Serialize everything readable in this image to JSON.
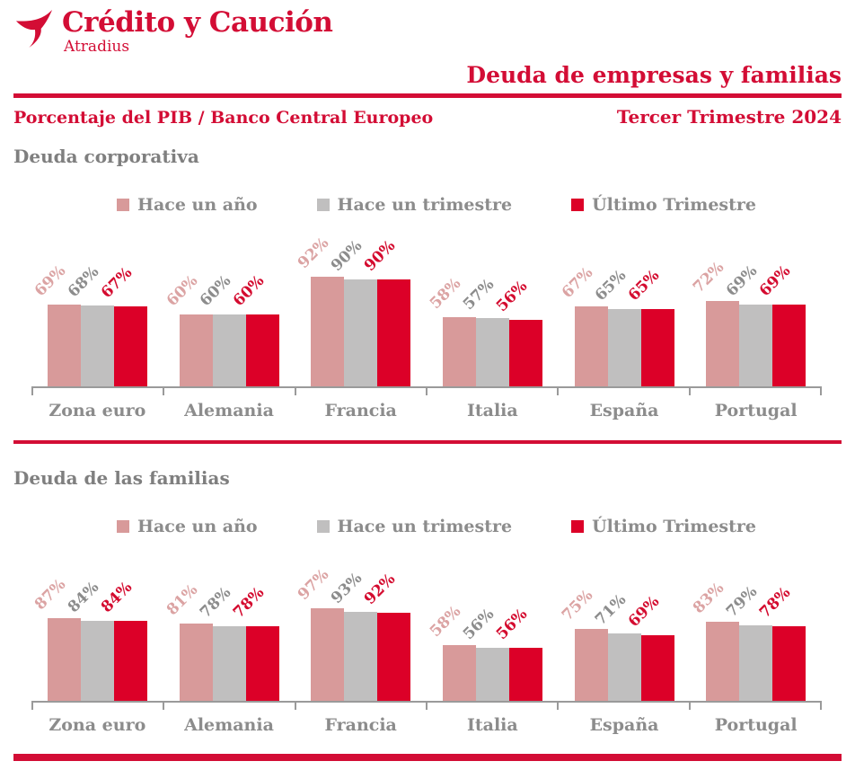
{
  "header": {
    "logo": {
      "title": "Crédito y Caución",
      "subtitle": "Atradius"
    },
    "doc_title": "Deuda de empresas y familias",
    "subtitle_left": "Porcentaje del PIB / Banco Central Europeo",
    "subtitle_right": "Tercer Trimestre 2024"
  },
  "colors": {
    "brand_red": "#d30d35",
    "bar_pink": "#d89a9a",
    "bar_gray": "#c0bfbf",
    "bar_red": "#dc0028",
    "label_pink": "#dba3a3",
    "label_gray": "#8c8c8c",
    "label_red": "#d40b2f",
    "axis_gray": "#9a9a9a",
    "section_title_gray": "#7f7f7f"
  },
  "legend": [
    {
      "label": "Hace un año",
      "swatch_color": "#d89a9a",
      "label_color": "#dba3a3"
    },
    {
      "label": "Hace un trimestre",
      "swatch_color": "#c0bfbf",
      "label_color": "#8c8c8c"
    },
    {
      "label": "Último Trimestre",
      "swatch_color": "#dc0028",
      "label_color": "#d40b2f"
    }
  ],
  "chart_data": [
    {
      "type": "bar",
      "title": "Deuda corporativa",
      "unit": "%",
      "categories": [
        "Zona euro",
        "Alemania",
        "Francia",
        "Italia",
        "España",
        "Portugal"
      ],
      "series": [
        {
          "name": "Hace un año",
          "values": [
            69,
            60,
            92,
            58,
            67,
            72
          ]
        },
        {
          "name": "Hace un trimestre",
          "values": [
            68,
            60,
            90,
            57,
            65,
            69
          ]
        },
        {
          "name": "Último Trimestre",
          "values": [
            67,
            60,
            90,
            56,
            65,
            69
          ]
        }
      ],
      "ylim": [
        0,
        100
      ],
      "grid": false,
      "legend_position": "top",
      "value_labels": "rotated -45deg above bars"
    },
    {
      "type": "bar",
      "title": "Deuda de las familias",
      "unit": "%",
      "categories": [
        "Zona euro",
        "Alemania",
        "Francia",
        "Italia",
        "España",
        "Portugal"
      ],
      "series": [
        {
          "name": "Hace un año",
          "values": [
            87,
            81,
            97,
            58,
            75,
            83
          ]
        },
        {
          "name": "Hace un trimestre",
          "values": [
            84,
            78,
            93,
            56,
            71,
            79
          ]
        },
        {
          "name": "Último Trimestre",
          "values": [
            84,
            78,
            92,
            56,
            69,
            78
          ]
        }
      ],
      "ylim": [
        0,
        100
      ],
      "grid": false,
      "legend_position": "top",
      "value_labels": "rotated -45deg above bars"
    }
  ]
}
